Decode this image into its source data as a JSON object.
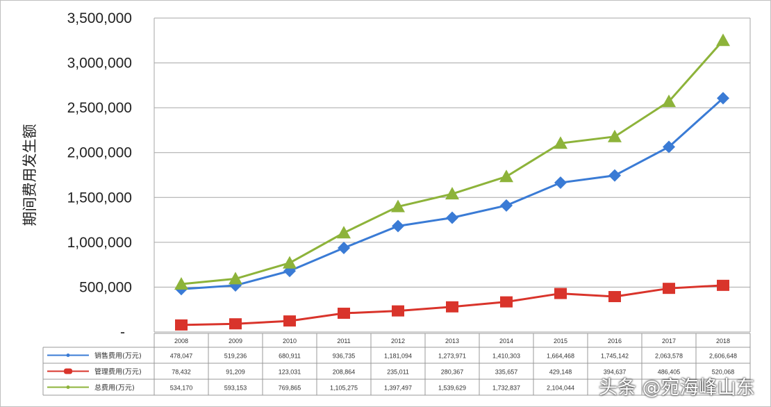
{
  "chart_data": {
    "type": "line",
    "ylabel": "期间费用发生额",
    "ylim": [
      0,
      3500000
    ],
    "yticks": [
      "-",
      "500,000",
      "1,000,000",
      "1,500,000",
      "2,000,000",
      "2,500,000",
      "3,000,000",
      "3,500,000"
    ],
    "grid": true,
    "legend": "data-table-below",
    "categories": [
      "2008",
      "2009",
      "2010",
      "2011",
      "2012",
      "2013",
      "2014",
      "2015",
      "2016",
      "2017",
      "2018"
    ],
    "series": [
      {
        "name": "销售费用(万元)",
        "color": "#3a7bd5",
        "marker": "diamond",
        "values": [
          478047,
          519236,
          680911,
          936735,
          1181094,
          1273971,
          1410303,
          1664468,
          1745142,
          2063578,
          2606648
        ],
        "labels": [
          "478,047",
          "519,236",
          "680,911",
          "936,735",
          "1,181,094",
          "1,273,971",
          "1,410,303",
          "1,664,468",
          "1,745,142",
          "2,063,578",
          "2,606,648"
        ]
      },
      {
        "name": "管理费用(万元)",
        "color": "#d9342b",
        "marker": "square",
        "values": [
          78432,
          91209,
          123031,
          208864,
          235011,
          280367,
          335657,
          429148,
          394637,
          486405,
          520068
        ],
        "labels": [
          "78,432",
          "91,209",
          "123,031",
          "208,864",
          "235,011",
          "280,367",
          "335,657",
          "429,148",
          "394,637",
          "486,405",
          "520,068"
        ]
      },
      {
        "name": "总费用(万元)",
        "color": "#8db33a",
        "marker": "triangle",
        "values": [
          534170,
          593153,
          769865,
          1105275,
          1397497,
          1539629,
          1732837,
          2104044,
          2178000,
          2570000,
          3250000
        ],
        "labels": [
          "534,170",
          "593,153",
          "769,865",
          "1,105,275",
          "1,397,497",
          "1,539,629",
          "1,732,837",
          "2,104,044",
          "",
          "",
          ""
        ]
      }
    ]
  },
  "watermark": "头条 @宛海峰山东"
}
